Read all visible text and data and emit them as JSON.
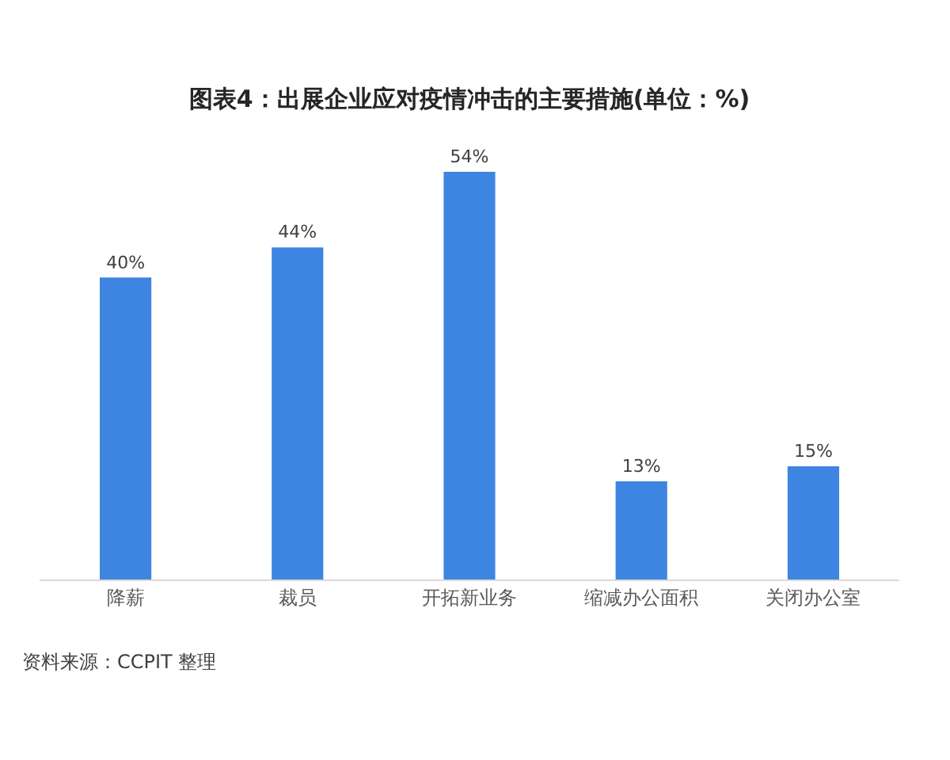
{
  "chart_data": {
    "type": "bar",
    "title": "图表4：出展企业应对疫情冲击的主要措施(单位：%)",
    "categories": [
      "降薪",
      "裁员",
      "开拓新业务",
      "缩减办公面积",
      "关闭办公室"
    ],
    "values": [
      40,
      44,
      54,
      13,
      15
    ],
    "value_labels": [
      "40%",
      "44%",
      "54%",
      "13%",
      "15%"
    ],
    "color": "#3d85e0",
    "tick_labels": "x",
    "grid": false,
    "annotations": [
      "资料来源：CCPIT 整理"
    ]
  }
}
